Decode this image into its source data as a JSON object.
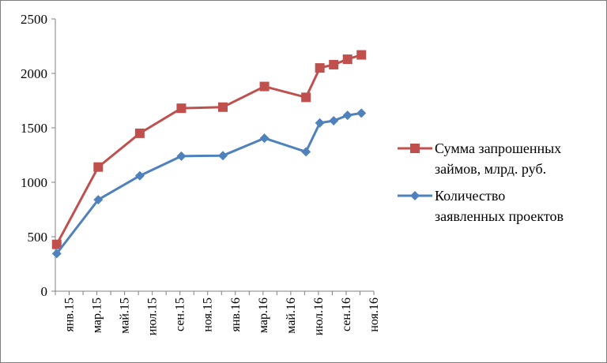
{
  "chart_data": {
    "type": "line",
    "title": "",
    "xlabel": "",
    "ylabel": "",
    "ylim": [
      0,
      2500
    ],
    "yticks": [
      0,
      500,
      1000,
      1500,
      2000,
      2500
    ],
    "categories": [
      "янв.15",
      "мар.15",
      "май.15",
      "июл.15",
      "сен.15",
      "ноя.15",
      "янв.16",
      "мар.16",
      "май.16",
      "июл.16",
      "сен.16",
      "ноя.16"
    ],
    "grid": false,
    "legend_position": "right",
    "series": [
      {
        "name": "Сумма запрошенных займов, млрд. руб.",
        "legend_lines": [
          "Сумма запрошенных",
          "займов, млрд. руб."
        ],
        "color": "#c0504d",
        "marker": "square",
        "points": [
          {
            "m": 0.1,
            "y": 430
          },
          {
            "m": 3.1,
            "y": 1140
          },
          {
            "m": 6.1,
            "y": 1450
          },
          {
            "m": 9.1,
            "y": 1680
          },
          {
            "m": 12.1,
            "y": 1690
          },
          {
            "m": 15.1,
            "y": 1880
          },
          {
            "m": 18.1,
            "y": 1780
          },
          {
            "m": 19.1,
            "y": 2050
          },
          {
            "m": 20.1,
            "y": 2080
          },
          {
            "m": 21.1,
            "y": 2130
          },
          {
            "m": 22.1,
            "y": 2170
          }
        ]
      },
      {
        "name": "Количество заявленных проектов",
        "legend_lines": [
          "Количество",
          "заявленных проектов"
        ],
        "color": "#4f81bd",
        "marker": "diamond",
        "points": [
          {
            "m": 0.1,
            "y": 345
          },
          {
            "m": 3.1,
            "y": 840
          },
          {
            "m": 6.1,
            "y": 1060
          },
          {
            "m": 9.1,
            "y": 1240
          },
          {
            "m": 12.1,
            "y": 1245
          },
          {
            "m": 15.1,
            "y": 1405
          },
          {
            "m": 18.1,
            "y": 1280
          },
          {
            "m": 19.1,
            "y": 1545
          },
          {
            "m": 20.1,
            "y": 1565
          },
          {
            "m": 21.1,
            "y": 1615
          },
          {
            "m": 22.1,
            "y": 1635
          }
        ]
      }
    ]
  }
}
